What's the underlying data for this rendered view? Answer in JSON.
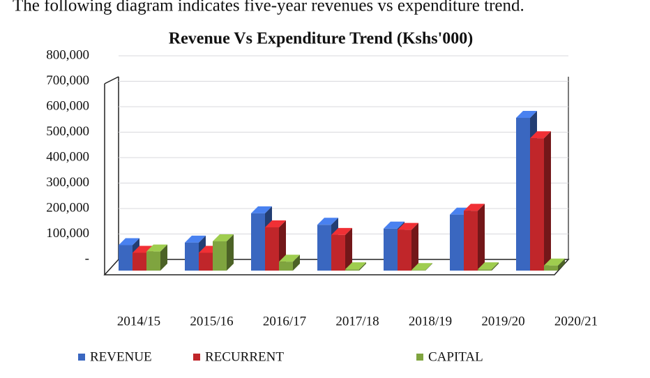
{
  "intro": "The following diagram indicates five-year revenues vs expenditure trend.",
  "chart_data": {
    "type": "bar3d",
    "title": "Revenue Vs Expenditure Trend (Kshs'000)",
    "categories": [
      "2014/15",
      "2015/16",
      "2016/17",
      "2017/18",
      "2018/19",
      "2019/20",
      "2020/21"
    ],
    "series": [
      {
        "name": "REVENUE",
        "color": "#3a67c0",
        "values": [
          100000,
          110000,
          225000,
          180000,
          165000,
          220000,
          600000
        ]
      },
      {
        "name": "RECURRENT",
        "color": "#c0262a",
        "values": [
          70000,
          70000,
          170000,
          140000,
          160000,
          235000,
          520000
        ]
      },
      {
        "name": "CAPITAL",
        "color": "#7fa43f",
        "values": [
          75000,
          115000,
          35000,
          5000,
          2000,
          5000,
          20000
        ]
      }
    ],
    "ylim": [
      0,
      800000
    ],
    "yticks": [
      {
        "value": 0,
        "label": "-"
      },
      {
        "value": 100000,
        "label": "100,000"
      },
      {
        "value": 200000,
        "label": "200,000"
      },
      {
        "value": 300000,
        "label": "300,000"
      },
      {
        "value": 400000,
        "label": "400,000"
      },
      {
        "value": 500000,
        "label": "500,000"
      },
      {
        "value": 600000,
        "label": "600,000"
      },
      {
        "value": 700000,
        "label": "700,000"
      },
      {
        "value": 800000,
        "label": "800,000"
      }
    ],
    "grid": true,
    "legend": "bottom"
  }
}
